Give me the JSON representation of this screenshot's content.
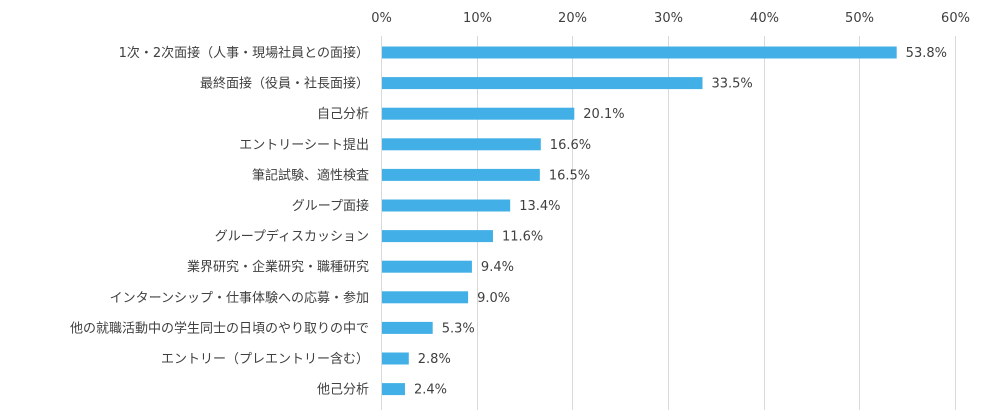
{
  "chart_data": {
    "type": "bar",
    "orientation": "horizontal",
    "title": "",
    "xlabel": "",
    "ylabel": "",
    "xlim": [
      0,
      60
    ],
    "ticks": [
      0,
      10,
      20,
      30,
      40,
      50,
      60
    ],
    "tick_labels": [
      "0%",
      "10%",
      "20%",
      "30%",
      "40%",
      "50%",
      "60%"
    ],
    "axis_position": "top",
    "grid": true,
    "bar_color": "#42b0e6",
    "grid_color": "#d9d9d9",
    "categories": [
      "1次・2次面接（人事・現場社員との面接）",
      "最終面接（役員・社長面接）",
      "自己分析",
      "エントリーシート提出",
      "筆記試験、適性検査",
      "グループ面接",
      "グループディスカッション",
      "業界研究・企業研究・職種研究",
      "インターンシップ・仕事体験への応募・参加",
      "他の就職活動中の学生同士の日頃のやり取りの中で",
      "エントリー（プレエントリー含む）",
      "他己分析"
    ],
    "values": [
      53.8,
      33.5,
      20.1,
      16.6,
      16.5,
      13.4,
      11.6,
      9.4,
      9.0,
      5.3,
      2.8,
      2.4
    ],
    "value_labels": [
      "53.8%",
      "33.5%",
      "20.1%",
      "16.6%",
      "16.5%",
      "13.4%",
      "11.6%",
      "9.4%",
      "9.0%",
      "5.3%",
      "2.8%",
      "2.4%"
    ]
  }
}
